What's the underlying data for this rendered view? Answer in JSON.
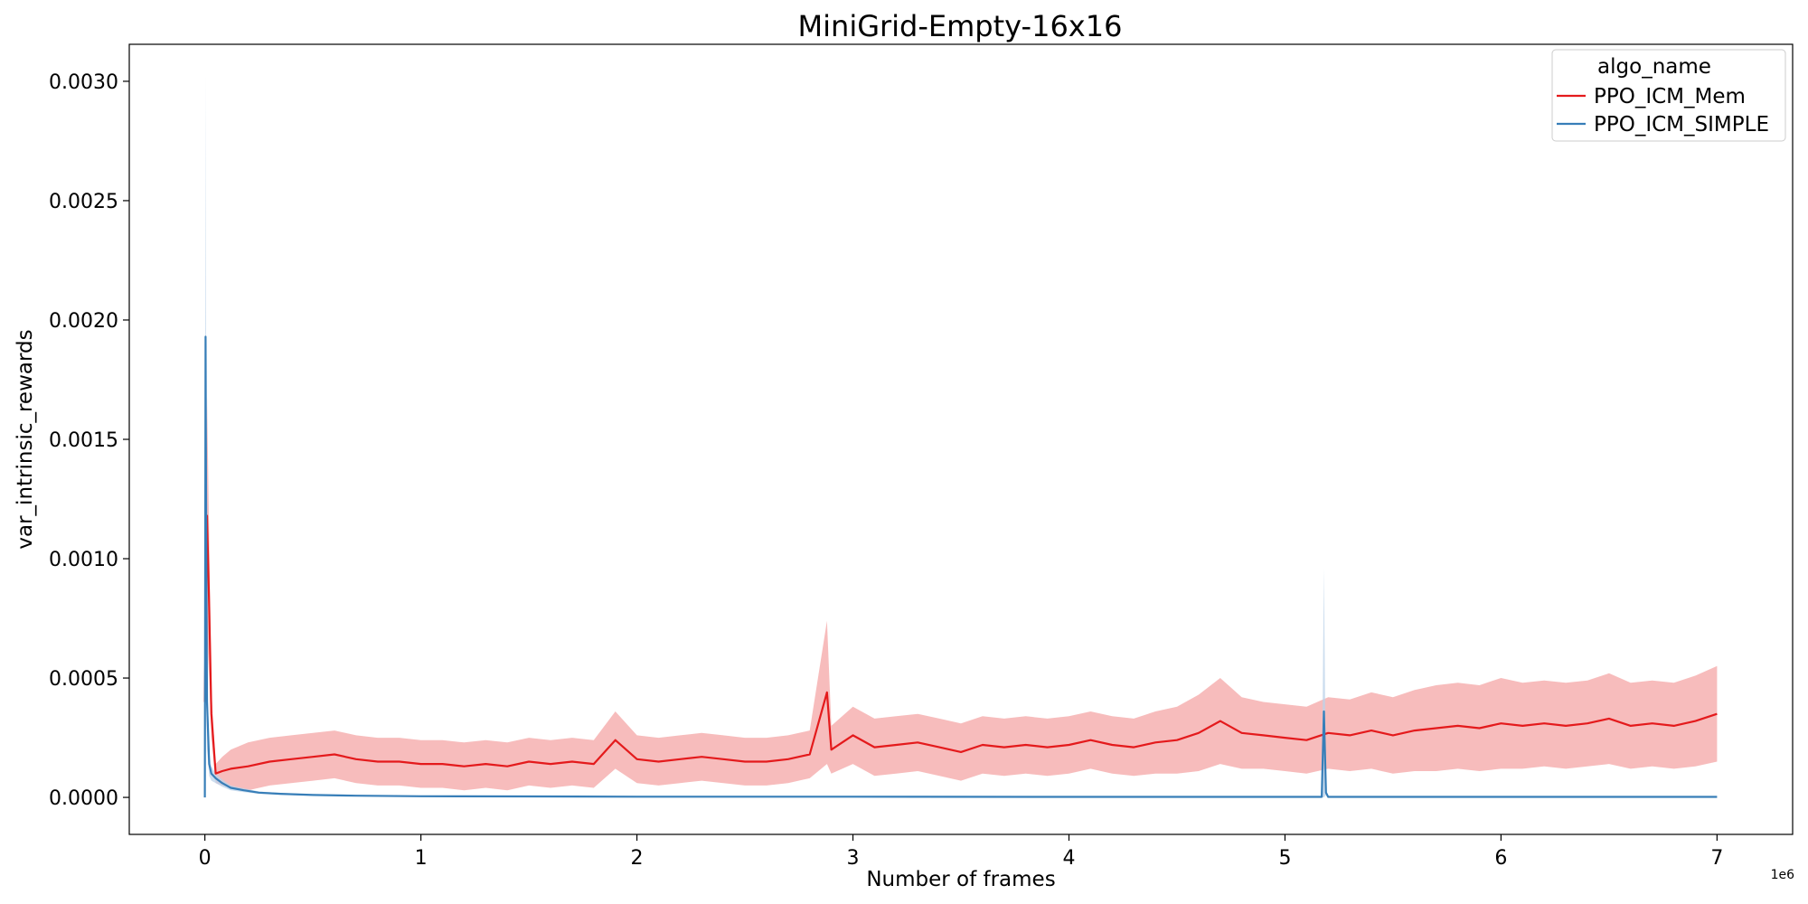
{
  "chart_data": {
    "type": "line",
    "title": "MiniGrid-Empty-16x16",
    "xlabel": "Number of frames",
    "ylabel": "var_intrinsic_rewards",
    "x_offset_label": "1e6",
    "xlim": [
      -0.35,
      7.35
    ],
    "ylim": [
      -0.000155,
      0.003155
    ],
    "x_ticks": [
      0,
      1,
      2,
      3,
      4,
      5,
      6,
      7
    ],
    "x_tick_labels": [
      "0",
      "1",
      "2",
      "3",
      "4",
      "5",
      "6",
      "7"
    ],
    "y_ticks": [
      0,
      0.0005,
      0.001,
      0.0015,
      0.002,
      0.0025,
      0.003
    ],
    "y_tick_labels": [
      "0.0000",
      "0.0005",
      "0.0010",
      "0.0015",
      "0.0020",
      "0.0025",
      "0.0030"
    ],
    "grid": false,
    "legend": {
      "title": "algo_name",
      "placement": "top-right",
      "entries": [
        "PPO_ICM_Mem",
        "PPO_ICM_SIMPLE"
      ]
    },
    "series": [
      {
        "name": "PPO_ICM_Mem",
        "color": "#e41a1c",
        "band_color": "#f4a5a6",
        "x": [
          0.0,
          0.01,
          0.02,
          0.03,
          0.05,
          0.08,
          0.12,
          0.2,
          0.3,
          0.4,
          0.5,
          0.6,
          0.7,
          0.8,
          0.9,
          1.0,
          1.1,
          1.2,
          1.3,
          1.4,
          1.5,
          1.6,
          1.7,
          1.8,
          1.9,
          2.0,
          2.1,
          2.2,
          2.3,
          2.4,
          2.5,
          2.6,
          2.7,
          2.8,
          2.88,
          2.9,
          3.0,
          3.1,
          3.2,
          3.3,
          3.4,
          3.5,
          3.6,
          3.7,
          3.8,
          3.9,
          4.0,
          4.1,
          4.2,
          4.3,
          4.4,
          4.5,
          4.6,
          4.7,
          4.8,
          4.9,
          5.0,
          5.1,
          5.2,
          5.3,
          5.4,
          5.5,
          5.6,
          5.7,
          5.8,
          5.9,
          6.0,
          6.1,
          6.2,
          6.3,
          6.4,
          6.5,
          6.6,
          6.7,
          6.8,
          6.9,
          7.0
        ],
        "y": [
          0.0004,
          0.00118,
          0.0008,
          0.00035,
          0.0001,
          0.00011,
          0.00012,
          0.00013,
          0.00015,
          0.00016,
          0.00017,
          0.00018,
          0.00016,
          0.00015,
          0.00015,
          0.00014,
          0.00014,
          0.00013,
          0.00014,
          0.00013,
          0.00015,
          0.00014,
          0.00015,
          0.00014,
          0.00024,
          0.00016,
          0.00015,
          0.00016,
          0.00017,
          0.00016,
          0.00015,
          0.00015,
          0.00016,
          0.00018,
          0.00044,
          0.0002,
          0.00026,
          0.00021,
          0.00022,
          0.00023,
          0.00021,
          0.00019,
          0.00022,
          0.00021,
          0.00022,
          0.00021,
          0.00022,
          0.00024,
          0.00022,
          0.00021,
          0.00023,
          0.00024,
          0.00027,
          0.00032,
          0.00027,
          0.00026,
          0.00025,
          0.00024,
          0.00027,
          0.00026,
          0.00028,
          0.00026,
          0.00028,
          0.00029,
          0.0003,
          0.00029,
          0.00031,
          0.0003,
          0.00031,
          0.0003,
          0.00031,
          0.00033,
          0.0003,
          0.00031,
          0.0003,
          0.00032,
          0.00035
        ],
        "band_width": [
          0.0001,
          0.0005,
          0.0003,
          0.0001,
          4e-05,
          6e-05,
          8e-05,
          0.0001,
          0.0001,
          0.0001,
          0.0001,
          0.0001,
          0.0001,
          0.0001,
          0.0001,
          0.0001,
          0.0001,
          0.0001,
          0.0001,
          0.0001,
          0.0001,
          0.0001,
          0.0001,
          0.0001,
          0.00012,
          0.0001,
          0.0001,
          0.0001,
          0.0001,
          0.0001,
          0.0001,
          0.0001,
          0.0001,
          0.0001,
          0.0003,
          0.0001,
          0.00012,
          0.00012,
          0.00012,
          0.00012,
          0.00012,
          0.00012,
          0.00012,
          0.00012,
          0.00012,
          0.00012,
          0.00012,
          0.00012,
          0.00012,
          0.00012,
          0.00013,
          0.00014,
          0.00016,
          0.00018,
          0.00015,
          0.00014,
          0.00014,
          0.00014,
          0.00015,
          0.00015,
          0.00016,
          0.00016,
          0.00017,
          0.00018,
          0.00018,
          0.00018,
          0.00019,
          0.00018,
          0.00018,
          0.00018,
          0.00018,
          0.00019,
          0.00018,
          0.00018,
          0.00018,
          0.00019,
          0.0002
        ]
      },
      {
        "name": "PPO_ICM_SIMPLE",
        "color": "#377eb8",
        "band_color": "#bcd3ea",
        "x": [
          0.0,
          0.003,
          0.006,
          0.01,
          0.02,
          0.03,
          0.05,
          0.08,
          0.12,
          0.18,
          0.25,
          0.35,
          0.5,
          0.7,
          1.0,
          1.5,
          2.0,
          3.0,
          4.0,
          5.0,
          5.17,
          5.18,
          5.19,
          5.2,
          5.22,
          6.0,
          7.0
        ],
        "y": [
          0.0,
          0.00193,
          0.0011,
          0.0004,
          0.00014,
          0.0001,
          8e-05,
          6e-05,
          4e-05,
          3e-05,
          2e-05,
          1.5e-05,
          1e-05,
          7e-06,
          5e-06,
          4e-06,
          3e-06,
          3e-06,
          2e-06,
          2e-06,
          2e-06,
          0.00036,
          2e-05,
          2e-06,
          2e-06,
          2e-06,
          2e-06
        ],
        "band_width": [
          0.0,
          0.0011,
          0.0006,
          0.0002,
          5e-05,
          3e-05,
          2e-05,
          1.5e-05,
          1e-05,
          8e-06,
          5e-06,
          4e-06,
          3e-06,
          2e-06,
          2e-06,
          1e-06,
          1e-06,
          1e-06,
          1e-06,
          1e-06,
          1e-06,
          0.0006,
          1e-05,
          1e-06,
          1e-06,
          1e-06,
          1e-06
        ]
      }
    ]
  }
}
